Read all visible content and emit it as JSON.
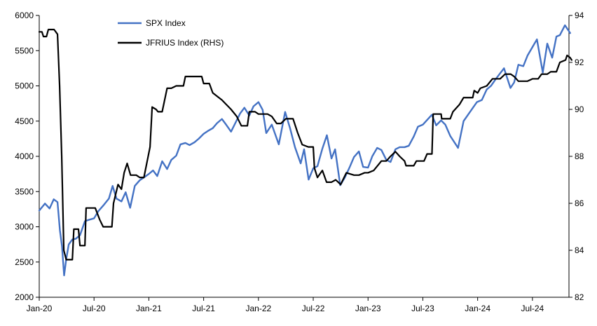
{
  "chart_data": {
    "type": "line",
    "x_axis": {
      "type": "date",
      "range": [
        "2020-01",
        "2024-11"
      ],
      "ticks": [
        "Jan-20",
        "Jul-20",
        "Jan-21",
        "Jul-21",
        "Jan-22",
        "Jul-22",
        "Jan-23",
        "Jul-23",
        "Jan-24",
        "Jul-24"
      ]
    },
    "y_left": {
      "range": [
        2000,
        6000
      ],
      "ticks": [
        2000,
        2500,
        3000,
        3500,
        4000,
        4500,
        5000,
        5500,
        6000
      ]
    },
    "y_right": {
      "range": [
        82,
        94
      ],
      "ticks": [
        82,
        84,
        86,
        88,
        90,
        92,
        94
      ]
    },
    "grid": false,
    "legend": {
      "placement": "top-center"
    },
    "series": [
      {
        "name": "SPX Index",
        "axis": "left",
        "color": "#4472c4",
        "points": [
          [
            "2020-01-01",
            3230
          ],
          [
            "2020-01-20",
            3330
          ],
          [
            "2020-02-05",
            3260
          ],
          [
            "2020-02-19",
            3390
          ],
          [
            "2020-03-01",
            3350
          ],
          [
            "2020-03-09",
            2950
          ],
          [
            "2020-03-16",
            2720
          ],
          [
            "2020-03-23",
            2310
          ],
          [
            "2020-03-30",
            2540
          ],
          [
            "2020-04-08",
            2750
          ],
          [
            "2020-04-20",
            2820
          ],
          [
            "2020-05-01",
            2830
          ],
          [
            "2020-05-15",
            2880
          ],
          [
            "2020-06-01",
            3080
          ],
          [
            "2020-06-15",
            3100
          ],
          [
            "2020-07-01",
            3120
          ],
          [
            "2020-07-15",
            3220
          ],
          [
            "2020-08-01",
            3300
          ],
          [
            "2020-08-20",
            3400
          ],
          [
            "2020-09-02",
            3580
          ],
          [
            "2020-09-15",
            3400
          ],
          [
            "2020-10-01",
            3360
          ],
          [
            "2020-10-15",
            3490
          ],
          [
            "2020-10-30",
            3270
          ],
          [
            "2020-11-15",
            3580
          ],
          [
            "2020-12-01",
            3660
          ],
          [
            "2020-12-15",
            3700
          ],
          [
            "2021-01-01",
            3750
          ],
          [
            "2021-01-15",
            3800
          ],
          [
            "2021-01-29",
            3720
          ],
          [
            "2021-02-15",
            3930
          ],
          [
            "2021-03-01",
            3820
          ],
          [
            "2021-03-15",
            3950
          ],
          [
            "2021-04-01",
            4010
          ],
          [
            "2021-04-15",
            4170
          ],
          [
            "2021-05-01",
            4190
          ],
          [
            "2021-05-15",
            4160
          ],
          [
            "2021-06-01",
            4200
          ],
          [
            "2021-06-15",
            4250
          ],
          [
            "2021-07-01",
            4320
          ],
          [
            "2021-07-15",
            4360
          ],
          [
            "2021-08-01",
            4400
          ],
          [
            "2021-08-15",
            4470
          ],
          [
            "2021-09-01",
            4530
          ],
          [
            "2021-09-15",
            4450
          ],
          [
            "2021-10-01",
            4350
          ],
          [
            "2021-10-15",
            4470
          ],
          [
            "2021-11-01",
            4610
          ],
          [
            "2021-11-15",
            4690
          ],
          [
            "2021-12-01",
            4580
          ],
          [
            "2021-12-15",
            4710
          ],
          [
            "2022-01-01",
            4770
          ],
          [
            "2022-01-15",
            4660
          ],
          [
            "2022-01-27",
            4330
          ],
          [
            "2022-02-15",
            4450
          ],
          [
            "2022-03-08",
            4170
          ],
          [
            "2022-03-29",
            4630
          ],
          [
            "2022-04-15",
            4400
          ],
          [
            "2022-05-01",
            4130
          ],
          [
            "2022-05-20",
            3900
          ],
          [
            "2022-06-01",
            4100
          ],
          [
            "2022-06-16",
            3670
          ],
          [
            "2022-07-01",
            3830
          ],
          [
            "2022-07-15",
            3860
          ],
          [
            "2022-08-01",
            4110
          ],
          [
            "2022-08-16",
            4300
          ],
          [
            "2022-09-01",
            3970
          ],
          [
            "2022-09-13",
            4100
          ],
          [
            "2022-09-30",
            3590
          ],
          [
            "2022-10-15",
            3700
          ],
          [
            "2022-11-01",
            3850
          ],
          [
            "2022-11-15",
            3990
          ],
          [
            "2022-12-01",
            4070
          ],
          [
            "2022-12-15",
            3850
          ],
          [
            "2023-01-01",
            3840
          ],
          [
            "2023-01-15",
            4000
          ],
          [
            "2023-02-01",
            4120
          ],
          [
            "2023-02-15",
            4090
          ],
          [
            "2023-03-01",
            3950
          ],
          [
            "2023-03-15",
            3920
          ],
          [
            "2023-04-01",
            4100
          ],
          [
            "2023-04-15",
            4130
          ],
          [
            "2023-05-01",
            4130
          ],
          [
            "2023-05-15",
            4150
          ],
          [
            "2023-06-01",
            4280
          ],
          [
            "2023-06-15",
            4420
          ],
          [
            "2023-07-01",
            4450
          ],
          [
            "2023-07-31",
            4590
          ],
          [
            "2023-08-15",
            4440
          ],
          [
            "2023-09-01",
            4510
          ],
          [
            "2023-09-15",
            4450
          ],
          [
            "2023-10-01",
            4290
          ],
          [
            "2023-10-27",
            4120
          ],
          [
            "2023-11-15",
            4500
          ],
          [
            "2023-12-01",
            4600
          ],
          [
            "2023-12-29",
            4770
          ],
          [
            "2024-01-15",
            4800
          ],
          [
            "2024-02-01",
            4950
          ],
          [
            "2024-02-15",
            5000
          ],
          [
            "2024-03-01",
            5100
          ],
          [
            "2024-03-28",
            5250
          ],
          [
            "2024-04-19",
            4970
          ],
          [
            "2024-05-01",
            5050
          ],
          [
            "2024-05-15",
            5300
          ],
          [
            "2024-06-01",
            5280
          ],
          [
            "2024-06-15",
            5430
          ],
          [
            "2024-07-16",
            5660
          ],
          [
            "2024-08-05",
            5190
          ],
          [
            "2024-08-20",
            5600
          ],
          [
            "2024-09-06",
            5400
          ],
          [
            "2024-09-20",
            5700
          ],
          [
            "2024-10-01",
            5720
          ],
          [
            "2024-10-18",
            5860
          ],
          [
            "2024-11-05",
            5750
          ]
        ]
      },
      {
        "name": "JFRIUS Index (RHS)",
        "axis": "right",
        "color": "#000000",
        "points": [
          [
            "2020-01-01",
            93.3
          ],
          [
            "2020-01-10",
            93.3
          ],
          [
            "2020-01-15",
            93.1
          ],
          [
            "2020-01-25",
            93.1
          ],
          [
            "2020-02-01",
            93.4
          ],
          [
            "2020-02-20",
            93.4
          ],
          [
            "2020-03-01",
            93.2
          ],
          [
            "2020-03-08",
            91.0
          ],
          [
            "2020-03-15",
            88.0
          ],
          [
            "2020-03-22",
            84.0
          ],
          [
            "2020-03-30",
            83.6
          ],
          [
            "2020-04-20",
            83.6
          ],
          [
            "2020-04-25",
            84.9
          ],
          [
            "2020-05-10",
            84.9
          ],
          [
            "2020-05-15",
            84.2
          ],
          [
            "2020-06-01",
            84.2
          ],
          [
            "2020-06-05",
            85.8
          ],
          [
            "2020-07-05",
            85.8
          ],
          [
            "2020-07-20",
            85.3
          ],
          [
            "2020-08-01",
            85.0
          ],
          [
            "2020-08-30",
            85.0
          ],
          [
            "2020-09-05",
            86.0
          ],
          [
            "2020-09-20",
            86.8
          ],
          [
            "2020-10-01",
            86.6
          ],
          [
            "2020-10-10",
            87.3
          ],
          [
            "2020-10-20",
            87.7
          ],
          [
            "2020-11-01",
            87.2
          ],
          [
            "2020-11-20",
            87.2
          ],
          [
            "2020-12-01",
            87.1
          ],
          [
            "2020-12-15",
            87.1
          ],
          [
            "2021-01-05",
            88.4
          ],
          [
            "2021-01-12",
            90.1
          ],
          [
            "2021-01-25",
            90.0
          ],
          [
            "2021-02-01",
            89.9
          ],
          [
            "2021-02-15",
            89.9
          ],
          [
            "2021-03-01",
            90.9
          ],
          [
            "2021-03-15",
            90.9
          ],
          [
            "2021-04-01",
            91.0
          ],
          [
            "2021-04-25",
            91.0
          ],
          [
            "2021-05-01",
            91.4
          ],
          [
            "2021-06-25",
            91.4
          ],
          [
            "2021-07-01",
            91.1
          ],
          [
            "2021-07-20",
            91.1
          ],
          [
            "2021-08-01",
            90.7
          ],
          [
            "2021-09-01",
            90.4
          ],
          [
            "2021-10-01",
            90.0
          ],
          [
            "2021-10-20",
            89.7
          ],
          [
            "2021-11-05",
            89.3
          ],
          [
            "2021-11-25",
            89.3
          ],
          [
            "2021-12-01",
            89.9
          ],
          [
            "2021-12-20",
            89.9
          ],
          [
            "2022-01-01",
            89.8
          ],
          [
            "2022-02-01",
            89.8
          ],
          [
            "2022-02-15",
            89.7
          ],
          [
            "2022-03-01",
            89.4
          ],
          [
            "2022-03-15",
            89.4
          ],
          [
            "2022-04-01",
            89.6
          ],
          [
            "2022-04-25",
            89.6
          ],
          [
            "2022-05-10",
            89.0
          ],
          [
            "2022-05-25",
            88.5
          ],
          [
            "2022-06-15",
            88.4
          ],
          [
            "2022-07-01",
            88.4
          ],
          [
            "2022-07-05",
            87.5
          ],
          [
            "2022-07-15",
            87.1
          ],
          [
            "2022-08-01",
            87.4
          ],
          [
            "2022-08-15",
            86.9
          ],
          [
            "2022-09-01",
            86.9
          ],
          [
            "2022-09-15",
            87.0
          ],
          [
            "2022-10-01",
            86.8
          ],
          [
            "2022-10-20",
            87.3
          ],
          [
            "2022-11-15",
            87.2
          ],
          [
            "2022-12-01",
            87.2
          ],
          [
            "2022-12-20",
            87.3
          ],
          [
            "2023-01-01",
            87.3
          ],
          [
            "2023-01-20",
            87.4
          ],
          [
            "2023-02-15",
            87.8
          ],
          [
            "2023-03-01",
            87.8
          ],
          [
            "2023-03-15",
            88.0
          ],
          [
            "2023-04-01",
            88.2
          ],
          [
            "2023-04-15",
            88.0
          ],
          [
            "2023-05-01",
            87.8
          ],
          [
            "2023-05-06",
            87.6
          ],
          [
            "2023-06-01",
            87.6
          ],
          [
            "2023-06-10",
            87.8
          ],
          [
            "2023-07-05",
            87.8
          ],
          [
            "2023-07-15",
            88.1
          ],
          [
            "2023-08-01",
            88.1
          ],
          [
            "2023-08-05",
            89.8
          ],
          [
            "2023-09-01",
            89.8
          ],
          [
            "2023-09-03",
            89.6
          ],
          [
            "2023-10-01",
            89.6
          ],
          [
            "2023-10-10",
            89.9
          ],
          [
            "2023-11-01",
            90.2
          ],
          [
            "2023-11-15",
            90.5
          ],
          [
            "2023-12-15",
            90.5
          ],
          [
            "2023-12-20",
            90.8
          ],
          [
            "2024-01-01",
            90.7
          ],
          [
            "2024-01-10",
            90.9
          ],
          [
            "2024-02-01",
            91.0
          ],
          [
            "2024-02-20",
            91.3
          ],
          [
            "2024-03-15",
            91.3
          ],
          [
            "2024-04-01",
            91.5
          ],
          [
            "2024-04-20",
            91.5
          ],
          [
            "2024-05-01",
            91.4
          ],
          [
            "2024-05-15",
            91.2
          ],
          [
            "2024-06-15",
            91.2
          ],
          [
            "2024-07-01",
            91.3
          ],
          [
            "2024-07-20",
            91.3
          ],
          [
            "2024-08-01",
            91.5
          ],
          [
            "2024-08-20",
            91.5
          ],
          [
            "2024-09-01",
            91.6
          ],
          [
            "2024-09-20",
            91.6
          ],
          [
            "2024-10-01",
            92.0
          ],
          [
            "2024-10-20",
            92.1
          ],
          [
            "2024-10-25",
            92.3
          ],
          [
            "2024-11-05",
            92.2
          ],
          [
            "2024-11-10",
            92.1
          ]
        ]
      }
    ]
  }
}
